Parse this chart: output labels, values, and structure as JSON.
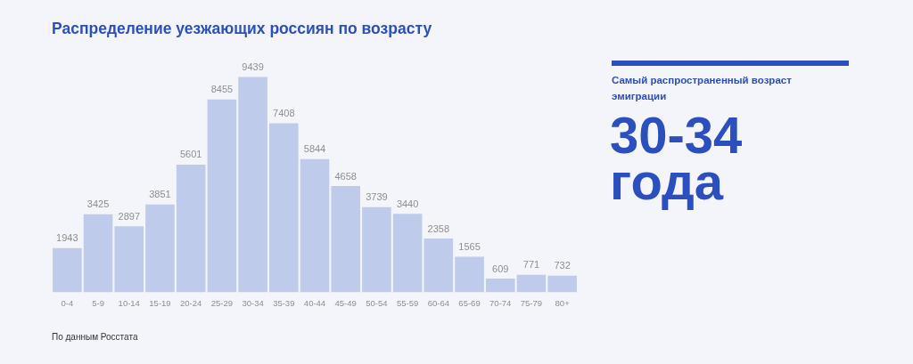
{
  "chart_data": [
    {
      "type": "bar",
      "title": "Распределение уезжающих россиян по возрасту",
      "categories": [
        "0-4",
        "5-9",
        "10-14",
        "15-19",
        "20-24",
        "25-29",
        "30-34",
        "35-39",
        "40-44",
        "45-49",
        "50-54",
        "55-59",
        "60-64",
        "65-69",
        "70-74",
        "75-79",
        "80+"
      ],
      "values": [
        1943,
        3425,
        2897,
        3851,
        5601,
        8455,
        9439,
        7408,
        5844,
        4658,
        3739,
        3440,
        2358,
        1565,
        609,
        771,
        732
      ],
      "color": "#bfcbeb",
      "data_labels": true,
      "grid": false,
      "legend": false,
      "tick_labels": "x",
      "annotations": [
        "По данным Росстата"
      ]
    },
    {
      "type": "other",
      "title": "Самый распространенный возраст эмиграции",
      "annotations": [
        "30-34 года"
      ]
    }
  ]
}
